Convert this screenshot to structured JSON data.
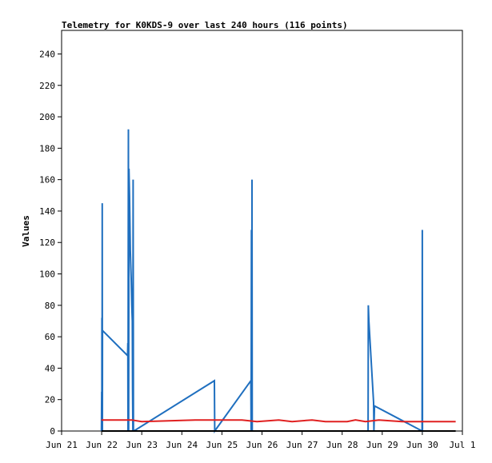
{
  "chart_data": {
    "type": "line",
    "title": "Telemetry for K0KDS-9 over last 240 hours (116 points)",
    "xlabel": "",
    "ylabel": "Values",
    "ylim": [
      0,
      255
    ],
    "yticks": [
      0,
      20,
      40,
      60,
      80,
      100,
      120,
      140,
      160,
      180,
      200,
      220,
      240
    ],
    "xlim": [
      "2023-06-21",
      "2023-07-01"
    ],
    "xticks": [
      {
        "date": "2023-06-21",
        "label": "Jun 21"
      },
      {
        "date": "2023-06-22",
        "label": "Jun 22"
      },
      {
        "date": "2023-06-23",
        "label": "Jun 23"
      },
      {
        "date": "2023-06-24",
        "label": "Jun 24"
      },
      {
        "date": "2023-06-25",
        "label": "Jun 25"
      },
      {
        "date": "2023-06-26",
        "label": "Jun 26"
      },
      {
        "date": "2023-06-27",
        "label": "Jun 27"
      },
      {
        "date": "2023-06-28",
        "label": "Jun 28"
      },
      {
        "date": "2023-06-29",
        "label": "Jun 29"
      },
      {
        "date": "2023-06-30",
        "label": "Jun 30"
      },
      {
        "date": "2023-07-01",
        "label": "Jul 1"
      }
    ],
    "grid": false,
    "series": [
      {
        "color": "#1f6fbf",
        "points": [
          [
            "2023-06-21 23:50",
            0
          ],
          [
            "2023-06-22 00:00",
            25
          ],
          [
            "2023-06-22 00:05",
            0
          ],
          [
            "2023-06-22 00:10",
            72
          ],
          [
            "2023-06-22 00:15",
            0
          ],
          [
            "2023-06-22 00:20",
            145
          ],
          [
            "2023-06-22 00:25",
            0
          ],
          [
            "2023-06-22 00:30",
            64
          ],
          [
            "2023-06-22 15:30",
            48
          ],
          [
            "2023-06-22 15:40",
            56
          ],
          [
            "2023-06-22 15:45",
            0
          ],
          [
            "2023-06-22 16:00",
            192
          ],
          [
            "2023-06-22 16:10",
            0
          ],
          [
            "2023-06-22 16:20",
            167
          ],
          [
            "2023-06-22 16:40",
            150
          ],
          [
            "2023-06-22 17:10",
            115
          ],
          [
            "2023-06-22 17:40",
            97
          ],
          [
            "2023-06-22 18:00",
            80
          ],
          [
            "2023-06-22 18:20",
            70
          ],
          [
            "2023-06-22 18:30",
            27
          ],
          [
            "2023-06-22 18:40",
            0
          ],
          [
            "2023-06-22 18:50",
            160
          ],
          [
            "2023-06-22 19:00",
            0
          ],
          [
            "2023-06-22 19:15",
            0
          ],
          [
            "2023-06-24 19:30",
            32
          ],
          [
            "2023-06-24 19:40",
            0
          ],
          [
            "2023-06-25 17:20",
            32
          ],
          [
            "2023-06-25 17:30",
            0
          ],
          [
            "2023-06-25 17:40",
            128
          ],
          [
            "2023-06-25 17:50",
            0
          ],
          [
            "2023-06-25 18:00",
            160
          ],
          [
            "2023-06-25 18:10",
            0
          ],
          [
            "2023-06-28 15:30",
            0
          ],
          [
            "2023-06-28 15:40",
            80
          ],
          [
            "2023-06-28 16:00",
            70
          ],
          [
            "2023-06-28 18:50",
            18
          ],
          [
            "2023-06-28 19:00",
            0
          ],
          [
            "2023-06-28 19:20",
            16
          ],
          [
            "2023-06-29 23:50",
            0
          ],
          [
            "2023-06-30 00:00",
            128
          ],
          [
            "2023-06-30 00:05",
            0
          ]
        ]
      },
      {
        "color": "#e02020",
        "points": [
          [
            "2023-06-21 23:50",
            7
          ],
          [
            "2023-06-22 18:00",
            7
          ],
          [
            "2023-06-23 00:00",
            6
          ],
          [
            "2023-06-24 08:00",
            7
          ],
          [
            "2023-06-25 12:00",
            7
          ],
          [
            "2023-06-25 21:00",
            6
          ],
          [
            "2023-06-26 10:00",
            7
          ],
          [
            "2023-06-26 18:00",
            6
          ],
          [
            "2023-06-27 06:00",
            7
          ],
          [
            "2023-06-27 14:00",
            6
          ],
          [
            "2023-06-28 03:00",
            6
          ],
          [
            "2023-06-28 08:00",
            7
          ],
          [
            "2023-06-28 14:00",
            6
          ],
          [
            "2023-06-28 22:00",
            7
          ],
          [
            "2023-06-29 12:00",
            6
          ],
          [
            "2023-06-30 20:00",
            6
          ]
        ]
      },
      {
        "color": "#000000",
        "points": [
          [
            "2023-06-21 23:50",
            0
          ],
          [
            "2023-06-30 20:00",
            0
          ]
        ]
      }
    ]
  }
}
